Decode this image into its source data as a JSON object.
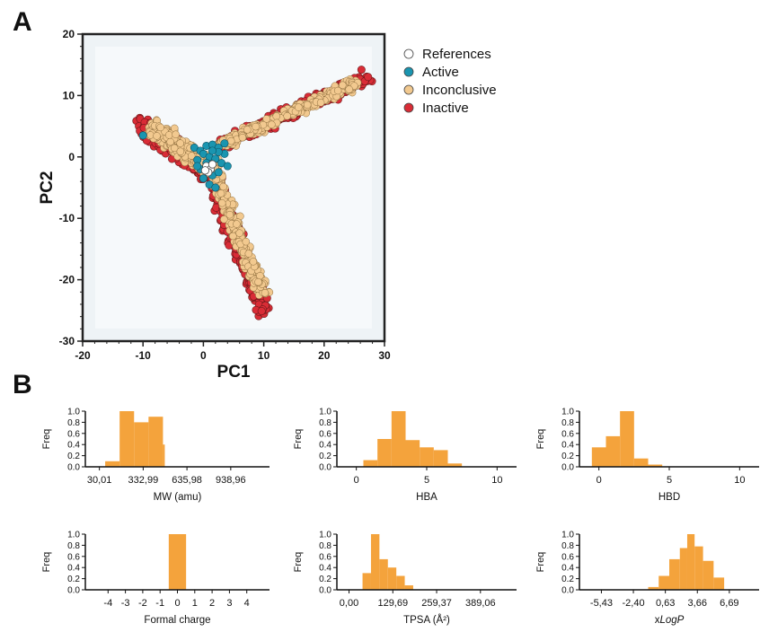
{
  "panel_labels": {
    "a": "A",
    "b": "B"
  },
  "chart_data": [
    {
      "type": "scatter",
      "panel": "A",
      "xlabel": "PC1",
      "ylabel": "PC2",
      "xlim": [
        -20,
        30
      ],
      "ylim": [
        -30,
        20
      ],
      "xticks": [
        "-20",
        "-10",
        "0",
        "10",
        "20",
        "30"
      ],
      "yticks": [
        "20",
        "10",
        "0",
        "-10",
        "-20",
        "-30"
      ],
      "legend_position": "right",
      "series": [
        {
          "name": "References",
          "color": "#ffffff",
          "values": [
            [
              0.5,
              -1.5
            ],
            [
              1.2,
              -2.0
            ],
            [
              0.8,
              -2.5
            ],
            [
              1.5,
              -1.2
            ],
            [
              0.3,
              -2.2
            ]
          ]
        },
        {
          "name": "Active",
          "color": "#1a95b0",
          "values": [
            [
              -10,
              3.5
            ],
            [
              -1.5,
              1.5
            ],
            [
              -0.5,
              1.0
            ],
            [
              0.5,
              1.8
            ],
            [
              1.5,
              2.0
            ],
            [
              2.5,
              1.5
            ],
            [
              3.5,
              2.2
            ],
            [
              -1.0,
              -0.5
            ],
            [
              0.0,
              0.5
            ],
            [
              1.0,
              0.0
            ],
            [
              2.0,
              -0.3
            ],
            [
              0.5,
              -1.0
            ],
            [
              -0.5,
              -2.0
            ],
            [
              1.5,
              -3.0
            ],
            [
              2.5,
              -2.5
            ],
            [
              3.0,
              -1.0
            ],
            [
              0.0,
              -3.5
            ],
            [
              1.0,
              -4.5
            ],
            [
              2.0,
              -5.0
            ],
            [
              -1.0,
              -1.5
            ],
            [
              3.5,
              0.5
            ],
            [
              2.5,
              0.8
            ],
            [
              4.0,
              -1.5
            ],
            [
              1.5,
              1.0
            ]
          ]
        },
        {
          "name": "Inconclusive",
          "color": "#f2c98f",
          "generated": "dense cloud: left arm, right arm, bottom arm"
        },
        {
          "name": "Inactive",
          "color": "#d92c36",
          "generated": "dense cloud: left arm, right arm, bottom arm"
        }
      ]
    },
    {
      "type": "bar",
      "panel": "B",
      "title": "",
      "xlabel": "MW (amu)",
      "ylabel": "Freq",
      "xticks": [
        "30,01",
        "332,99",
        "635,98",
        "938,96"
      ],
      "yticks": [
        "0.0",
        "0.2",
        "0.4",
        "0.6",
        "0.8",
        "1.0"
      ],
      "xlim": [
        0,
        1200
      ],
      "ylim": [
        0,
        1.0
      ],
      "bin_edges": [
        100,
        200,
        300,
        400,
        500
      ],
      "values": [
        0.1,
        1.0,
        0.8,
        0.9,
        0.4
      ],
      "color": "#f4a33c"
    },
    {
      "type": "bar",
      "panel": "B",
      "title": "",
      "xlabel": "HBA",
      "ylabel": "Freq",
      "xticks": [
        "0",
        "5",
        "10"
      ],
      "yticks": [
        "0.0",
        "0.2",
        "0.4",
        "0.6",
        "0.8",
        "1.0"
      ],
      "xlim": [
        -1,
        11
      ],
      "ylim": [
        0,
        1.0
      ],
      "bin_edges": [
        0.5,
        1.5,
        2.5,
        3.5,
        4.5,
        5.5,
        6.5,
        7.5
      ],
      "values": [
        0.12,
        0.5,
        1.0,
        0.48,
        0.35,
        0.3,
        0.06
      ],
      "color": "#f4a33c"
    },
    {
      "type": "bar",
      "panel": "B",
      "title": "",
      "xlabel": "HBD",
      "ylabel": "Freq",
      "xticks": [
        "0",
        "5",
        "10"
      ],
      "yticks": [
        "0.0",
        "0.2",
        "0.4",
        "0.6",
        "0.8",
        "1.0"
      ],
      "xlim": [
        -1,
        11
      ],
      "ylim": [
        0,
        1.0
      ],
      "bin_edges": [
        -0.5,
        0.5,
        1.5,
        2.5,
        3.5,
        4.5
      ],
      "values": [
        0.35,
        0.55,
        1.0,
        0.15,
        0.04
      ],
      "color": "#f4a33c"
    },
    {
      "type": "bar",
      "panel": "B",
      "title": "",
      "xlabel": "Formal charge",
      "ylabel": "Freq",
      "xticks": [
        "-4",
        "-3",
        "-2",
        "-1",
        "0",
        "1",
        "2",
        "3",
        "4"
      ],
      "yticks": [
        "0.0",
        "0.2",
        "0.4",
        "0.6",
        "0.8",
        "1.0"
      ],
      "xlim": [
        -5,
        5
      ],
      "ylim": [
        0,
        1.0
      ],
      "bin_edges": [
        -0.5,
        0.5
      ],
      "values": [
        1.0
      ],
      "color": "#f4a33c"
    },
    {
      "type": "bar",
      "panel": "B",
      "title": "",
      "xlabel": "TPSA (Å²)",
      "ylabel": "Freq",
      "xticks": [
        "0,00",
        "129,69",
        "259,37",
        "389,06"
      ],
      "yticks": [
        "0.0",
        "0.2",
        "0.4",
        "0.6",
        "0.8",
        "1.0"
      ],
      "xlim": [
        -20,
        480
      ],
      "ylim": [
        0,
        1.0
      ],
      "bin_edges": [
        40,
        65,
        90,
        115,
        140,
        165,
        190
      ],
      "values": [
        0.3,
        1.0,
        0.55,
        0.4,
        0.25,
        0.08
      ],
      "color": "#f4a33c"
    },
    {
      "type": "bar",
      "panel": "B",
      "title": "",
      "xlabel": "xLogP",
      "ylabel": "Freq",
      "xticks": [
        "-5,43",
        "-2,40",
        "0,63",
        "3,66",
        "6,69"
      ],
      "yticks": [
        "0.0",
        "0.2",
        "0.4",
        "0.6",
        "0.8",
        "1.0"
      ],
      "xlim": [
        -7,
        9
      ],
      "ylim": [
        0,
        1.0
      ],
      "bin_edges": [
        -1.0,
        0.0,
        1.0,
        2.0,
        2.7,
        3.4,
        4.2,
        5.2,
        6.2
      ],
      "values": [
        0.05,
        0.25,
        0.55,
        0.75,
        1.0,
        0.78,
        0.52,
        0.22
      ],
      "color": "#f4a33c"
    }
  ]
}
